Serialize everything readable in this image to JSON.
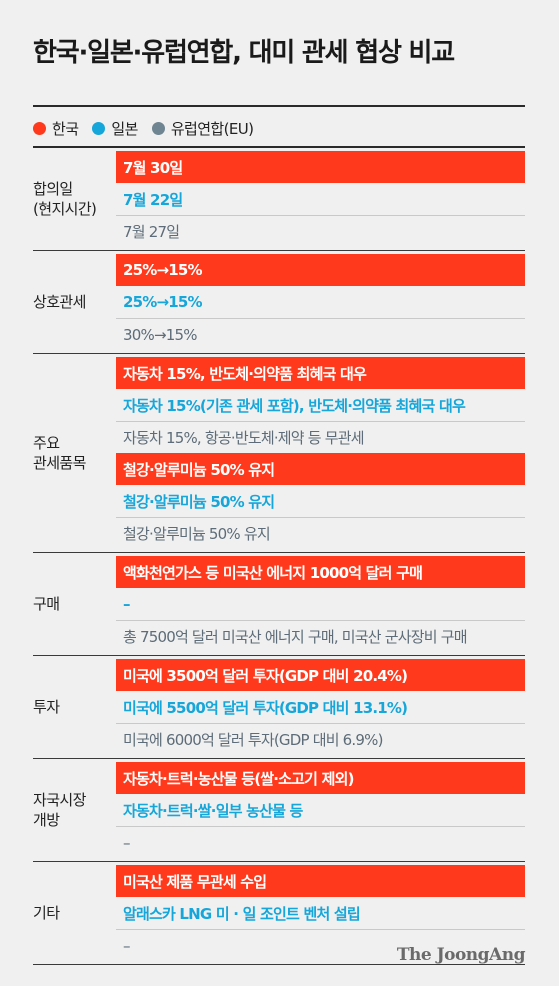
{
  "title": "한국·일본·유럽연합, 대미 관세 협상 비교",
  "legend": [
    {
      "label": "한국",
      "color": "#ff3a1c"
    },
    {
      "label": "일본",
      "color": "#16a6d9"
    },
    {
      "label": "유럽연합(EU)",
      "color": "#6f8591"
    }
  ],
  "groups": [
    {
      "category": "합의일\n(현지시간)",
      "kr": "7월 30일",
      "jp": "7월 22일",
      "eu": "7월 27일"
    },
    {
      "category": "상호관세",
      "kr": "25%→15%",
      "jp": "25%→15%",
      "eu": "30%→15%"
    },
    {
      "category": "주요\n관세품목",
      "kr": "자동차 15%, 반도체·의약품 최혜국 대우",
      "jp": "자동차 15%(기존 관세 포함), 반도체·의약품 최혜국 대우",
      "eu": "자동차 15%, 항공·반도체·제약 등 무관세",
      "kr2": "철강·알루미늄 50% 유지",
      "jp2": "철강·알루미늄 50% 유지",
      "eu2": "철강·알루미늄 50% 유지"
    },
    {
      "category": "구매",
      "kr": "액화천연가스 등 미국산 에너지 1000억 달러 구매",
      "jp": "–",
      "eu": "총 7500억 달러 미국산 에너지 구매, 미국산 군사장비 구매"
    },
    {
      "category": "투자",
      "kr": "미국에 3500억 달러 투자(GDP 대비 20.4%)",
      "jp": "미국에 5500억 달러 투자(GDP 대비 13.1%)",
      "eu": "미국에 6000억 달러 투자(GDP 대비 6.9%)"
    },
    {
      "category": "자국시장\n개방",
      "kr": "자동차·트럭·농산물 등(쌀·소고기 제외)",
      "jp": "자동차·트럭·쌀·일부 농산물 등",
      "eu": "–"
    },
    {
      "category": "기타",
      "kr": "미국산 제품 무관세 수입",
      "jp": "알래스카 LNG 미 · 일 조인트 벤처 설립",
      "eu": "–"
    }
  ],
  "source": "The JoongAng"
}
